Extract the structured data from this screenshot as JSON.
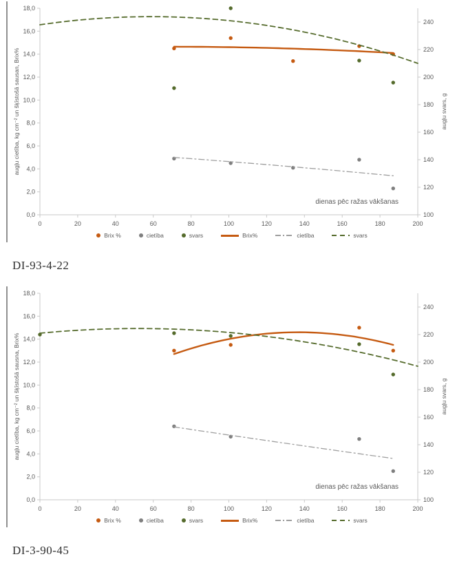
{
  "colors": {
    "orange": "#C55A11",
    "gray_dot": "#7F7F7F",
    "gray_line": "#9E9E9E",
    "green": "#556B2C",
    "axis_text": "#595959",
    "axis_line": "#C9C9C9",
    "caption_text": "#2e2e2e",
    "left_rule": "#8f8f8f"
  },
  "chart_data": [
    {
      "type": "scatter",
      "caption": "DI-93-4-22",
      "x_axis": {
        "min": 0,
        "max": 200,
        "ticks": [
          0,
          20,
          40,
          60,
          80,
          100,
          120,
          140,
          160,
          180,
          200
        ],
        "tick_labels": [
          "0",
          "20",
          "40",
          "60",
          "80",
          "100",
          "120",
          "140",
          "160",
          "180",
          "200"
        ],
        "annotation": "dienas pēc ražas vākšanas"
      },
      "y_left": {
        "label": "augļu cietība, kg cm⁻² un šķīstošā sausan, Brix%",
        "min": 0,
        "max": 18,
        "ticks": [
          0,
          2,
          4,
          6,
          8,
          10,
          12,
          14,
          16,
          18
        ],
        "tick_labels": [
          "0,0",
          "2,0",
          "4,0",
          "6,0",
          "8,0",
          "10,0",
          "12,0",
          "14,0",
          "16,0",
          "18,0"
        ]
      },
      "y_right": {
        "label": "augļu svars, g",
        "min": 100,
        "max": 250,
        "ticks": [
          100,
          120,
          140,
          160,
          180,
          200,
          220,
          240
        ],
        "tick_labels": [
          "100",
          "120",
          "140",
          "160",
          "180",
          "200",
          "220",
          "240"
        ]
      },
      "series": [
        {
          "name": "Brix %",
          "axis": "left",
          "type": "scatter",
          "color": "orange",
          "points": [
            [
              71,
              14.5
            ],
            [
              101,
              15.4
            ],
            [
              134,
              13.4
            ],
            [
              169,
              14.7
            ],
            [
              187,
              14.0
            ]
          ]
        },
        {
          "name": "cietība",
          "axis": "left",
          "type": "scatter",
          "color": "gray_dot",
          "points": [
            [
              71,
              4.9
            ],
            [
              101,
              4.5
            ],
            [
              134,
              4.1
            ],
            [
              169,
              4.8
            ],
            [
              187,
              2.3
            ]
          ]
        },
        {
          "name": "svars",
          "axis": "right",
          "type": "scatter",
          "color": "green",
          "points": [
            [
              71,
              192
            ],
            [
              101,
              250
            ],
            [
              169,
              212
            ],
            [
              187,
              196
            ]
          ]
        },
        {
          "name": "Brix%",
          "axis": "left",
          "type": "trend",
          "style": "solid",
          "color": "orange",
          "curve": [
            [
              71,
              14.65
            ],
            [
              130,
              14.5
            ],
            [
              187,
              14.1
            ]
          ]
        },
        {
          "name": "cietība",
          "axis": "left",
          "type": "trend",
          "style": "dashdot",
          "color": "gray_line",
          "curve": [
            [
              71,
              5.0
            ],
            [
              129,
              4.25
            ],
            [
              187,
              3.4
            ]
          ]
        },
        {
          "name": "svars",
          "axis": "right",
          "type": "trend",
          "style": "dashed",
          "color": "green",
          "curve": [
            [
              0,
              238
            ],
            [
              82,
              243
            ],
            [
              200,
              210
            ]
          ]
        }
      ],
      "legend": [
        {
          "label": "Brix %",
          "marker": "dot",
          "color": "orange"
        },
        {
          "label": "cietība",
          "marker": "dot",
          "color": "gray_dot"
        },
        {
          "label": "svars",
          "marker": "dot",
          "color": "green"
        },
        {
          "label": "Brix%",
          "marker": "solid",
          "color": "orange"
        },
        {
          "label": "cietība",
          "marker": "dashdot",
          "color": "gray_line"
        },
        {
          "label": "svars",
          "marker": "dashed",
          "color": "green"
        }
      ]
    },
    {
      "type": "scatter",
      "caption": "DI-3-90-45",
      "x_axis": {
        "min": 0,
        "max": 200,
        "ticks": [
          0,
          20,
          40,
          60,
          80,
          100,
          120,
          140,
          160,
          180,
          200
        ],
        "tick_labels": [
          "0",
          "20",
          "40",
          "60",
          "80",
          "100",
          "120",
          "140",
          "160",
          "180",
          "200"
        ],
        "annotation": "dienas pēc ražas vākšanas"
      },
      "y_left": {
        "label": "augļu cietība, kg cm⁻² un šķīstošā sausna, Brix%",
        "min": 0,
        "max": 18,
        "ticks": [
          0,
          2,
          4,
          6,
          8,
          10,
          12,
          14,
          16,
          18
        ],
        "tick_labels": [
          "0,0",
          "2,0",
          "4,0",
          "6,0",
          "8,0",
          "10,0",
          "12,0",
          "14,0",
          "16,0",
          "18,0"
        ]
      },
      "y_right": {
        "label": "augļu svars, g",
        "min": 100,
        "max": 250,
        "ticks": [
          100,
          120,
          140,
          160,
          180,
          200,
          220,
          240
        ],
        "tick_labels": [
          "100",
          "120",
          "140",
          "160",
          "180",
          "200",
          "220",
          "240"
        ]
      },
      "series": [
        {
          "name": "Brix %",
          "axis": "left",
          "type": "scatter",
          "color": "orange",
          "points": [
            [
              71,
              13.0
            ],
            [
              101,
              13.5
            ],
            [
              169,
              15.0
            ],
            [
              187,
              13.0
            ]
          ]
        },
        {
          "name": "cietība",
          "axis": "left",
          "type": "scatter",
          "color": "gray_dot",
          "points": [
            [
              71,
              6.4
            ],
            [
              101,
              5.5
            ],
            [
              169,
              5.3
            ],
            [
              187,
              2.5
            ]
          ]
        },
        {
          "name": "svars",
          "axis": "right",
          "type": "scatter",
          "color": "green",
          "points": [
            [
              0,
              220
            ],
            [
              71,
              221
            ],
            [
              101,
              219
            ],
            [
              169,
              213
            ],
            [
              187,
              191
            ]
          ]
        },
        {
          "name": "Brix%",
          "axis": "left",
          "type": "trend",
          "style": "solid",
          "color": "orange",
          "curve": [
            [
              71,
              12.7
            ],
            [
              135,
              14.6
            ],
            [
              187,
              13.5
            ]
          ]
        },
        {
          "name": "cietība",
          "axis": "left",
          "type": "trend",
          "style": "dashdot",
          "color": "gray_line",
          "curve": [
            [
              71,
              6.35
            ],
            [
              129,
              4.95
            ],
            [
              187,
              3.6
            ]
          ]
        },
        {
          "name": "svars",
          "axis": "right",
          "type": "trend",
          "style": "dashed",
          "color": "green",
          "curve": [
            [
              0,
              221
            ],
            [
              70,
              224
            ],
            [
              200,
              197
            ]
          ]
        }
      ],
      "legend": [
        {
          "label": "Brix %",
          "marker": "dot",
          "color": "orange"
        },
        {
          "label": "cietība",
          "marker": "dot",
          "color": "gray_dot"
        },
        {
          "label": "svars",
          "marker": "dot",
          "color": "green"
        },
        {
          "label": "Brix%",
          "marker": "solid",
          "color": "orange"
        },
        {
          "label": "cietība",
          "marker": "dashdot",
          "color": "gray_line"
        },
        {
          "label": "svars",
          "marker": "dashed",
          "color": "green"
        }
      ]
    }
  ]
}
